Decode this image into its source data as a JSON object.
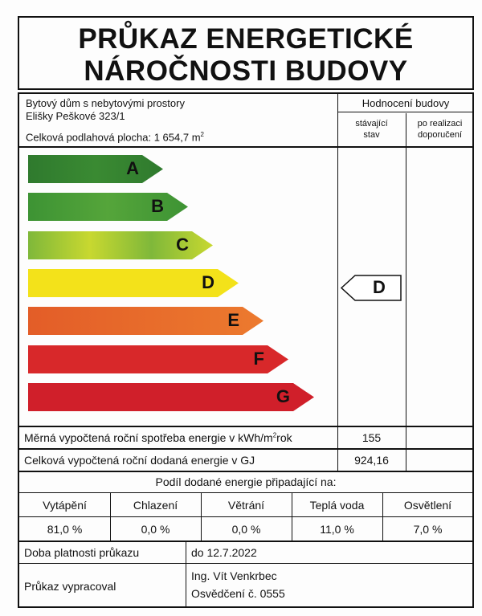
{
  "title_lines": [
    "PRŮKAZ ENERGETICKÉ",
    "NÁROČNOSTI BUDOVY"
  ],
  "building": {
    "type": "Bytový dům s nebytovými prostory",
    "address": "Elišky Peškové 323/1",
    "area_label": "Celková podlahová plocha: 1 654,7 m",
    "area_sup": "2"
  },
  "rating_header": {
    "title": "Hodnocení budovy",
    "current": [
      "stávající",
      "stav"
    ],
    "after": [
      "po realizaci",
      "doporučení"
    ]
  },
  "scale": [
    {
      "label": "A",
      "color": "#2f7a2e"
    },
    {
      "label": "B",
      "color": "#3d9334"
    },
    {
      "label": "C",
      "color": "#9cc23a"
    },
    {
      "label": "D",
      "color": "#f3e21a"
    },
    {
      "label": "E",
      "color": "#e6662a"
    },
    {
      "label": "F",
      "color": "#d8282a"
    },
    {
      "label": "G",
      "color": "#d01f2a"
    }
  ],
  "current_class": "D",
  "specific_energy": {
    "label": "Měrná vypočtená roční spotřeba energie v kWh/m",
    "sup": "2",
    "suffix": "rok",
    "value": "155"
  },
  "total_energy": {
    "label": "Celková vypočtená roční dodaná energie v GJ",
    "value": "924,16"
  },
  "share": {
    "title": "Podíl dodané energie připadající na:",
    "items": [
      {
        "label": "Vytápění",
        "value": "81,0 %"
      },
      {
        "label": "Chlazení",
        "value": "0,0 %"
      },
      {
        "label": "Větrání",
        "value": "0,0 %"
      },
      {
        "label": "Teplá voda",
        "value": "11,0 %"
      },
      {
        "label": "Osvětlení",
        "value": "7,0 %"
      }
    ]
  },
  "validity": {
    "label": "Doba platnosti průkazu",
    "value": "do 12.7.2022"
  },
  "author": {
    "label": "Průkaz vypracoval",
    "name": "Ing. Vít Venkrbec",
    "cert": "Osvědčení č. 0555"
  }
}
